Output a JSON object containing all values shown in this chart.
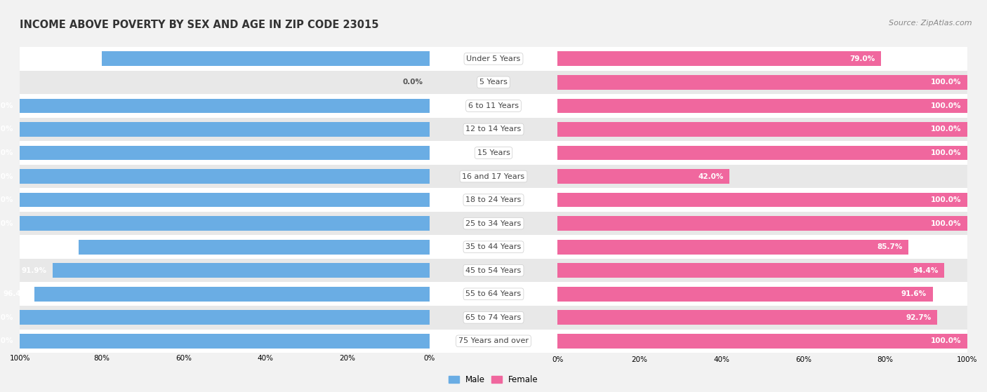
{
  "title": "INCOME ABOVE POVERTY BY SEX AND AGE IN ZIP CODE 23015",
  "source": "Source: ZipAtlas.com",
  "categories": [
    "Under 5 Years",
    "5 Years",
    "6 to 11 Years",
    "12 to 14 Years",
    "15 Years",
    "16 and 17 Years",
    "18 to 24 Years",
    "25 to 34 Years",
    "35 to 44 Years",
    "45 to 54 Years",
    "55 to 64 Years",
    "65 to 74 Years",
    "75 Years and over"
  ],
  "male_values": [
    80.0,
    0.0,
    100.0,
    100.0,
    100.0,
    100.0,
    100.0,
    100.0,
    85.6,
    91.9,
    96.4,
    100.0,
    100.0
  ],
  "female_values": [
    79.0,
    100.0,
    100.0,
    100.0,
    100.0,
    42.0,
    100.0,
    100.0,
    85.7,
    94.4,
    91.6,
    92.7,
    100.0
  ],
  "male_color": "#6aade4",
  "female_color": "#f0679e",
  "male_label": "Male",
  "female_label": "Female",
  "background_color": "#f2f2f2",
  "row_color_even": "#ffffff",
  "row_color_odd": "#e8e8e8",
  "title_fontsize": 10.5,
  "source_fontsize": 8,
  "label_fontsize": 7.5,
  "category_fontsize": 8,
  "xlim": [
    0,
    100
  ]
}
